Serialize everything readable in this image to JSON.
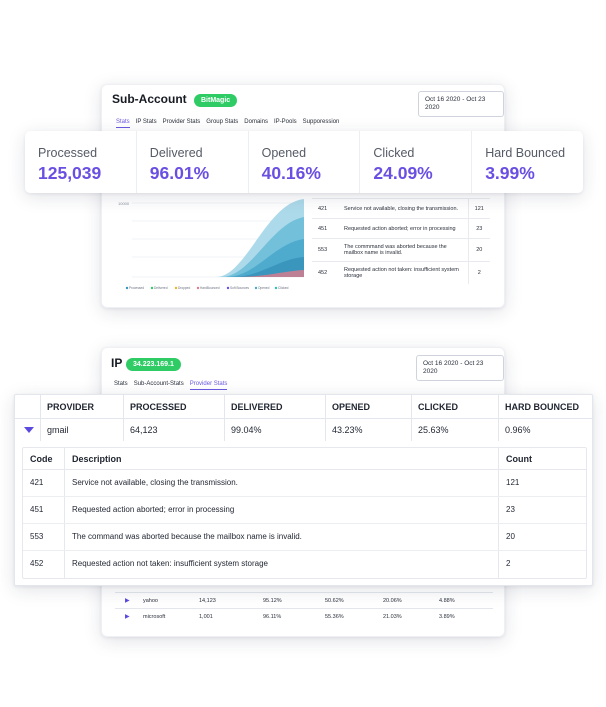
{
  "card1": {
    "title": "Sub-Account",
    "badge": "BitMagic",
    "date_range": "Oct 16 2020 - Oct 23 2020",
    "tabs": [
      {
        "label": "Stats",
        "active": true
      },
      {
        "label": "IP Stats",
        "active": false
      },
      {
        "label": "Provider Stats",
        "active": false
      },
      {
        "label": "Group Stats",
        "active": false
      },
      {
        "label": "Domains",
        "active": false
      },
      {
        "label": "IP-Pools",
        "active": false
      },
      {
        "label": "Supporession",
        "active": false
      }
    ],
    "chart": {
      "ytick_top": "10000",
      "legend": [
        "Processed",
        "Delivered",
        "Dropped",
        "HardBounced",
        "Soft Bounces",
        "Opened",
        "Clicked"
      ]
    },
    "mini_rows": [
      {
        "code": "421",
        "desc": "Service not available, closing the transmission.",
        "count": "121"
      },
      {
        "code": "451",
        "desc": "Requested action aborted; error in processing",
        "count": "23"
      },
      {
        "code": "553",
        "desc": "The commmand was aborted because the mailbox name is invalid.",
        "count": "20"
      },
      {
        "code": "452",
        "desc": "Requested action not taken: insufficient system storage",
        "count": "2"
      }
    ]
  },
  "stats": [
    {
      "label": "Processed",
      "value": "125,039"
    },
    {
      "label": "Delivered",
      "value": "96.01%"
    },
    {
      "label": "Opened",
      "value": "40.16%"
    },
    {
      "label": "Clicked",
      "value": "24.09%"
    },
    {
      "label": "Hard Bounced",
      "value": "3.99%"
    }
  ],
  "card2": {
    "title": "IP",
    "badge": "34.223.169.1",
    "date_range": "Oct 16 2020 - Oct 23 2020",
    "tabs": [
      {
        "label": "Stats",
        "active": false
      },
      {
        "label": "Sub-Account-Stats",
        "active": false
      },
      {
        "label": "Provider Stats",
        "active": true
      }
    ],
    "partial_row": "hotma",
    "rows": [
      {
        "provider": "yahoo",
        "processed": "14,123",
        "delivered": "95.12%",
        "opened": "50.62%",
        "clicked": "20.06%",
        "hard_bounced": "4.88%"
      },
      {
        "provider": "microsoft",
        "processed": "1,001",
        "delivered": "96.11%",
        "opened": "55.36%",
        "clicked": "21.03%",
        "hard_bounced": "3.89%"
      }
    ]
  },
  "provider": {
    "headers": [
      "PROVIDER",
      "PROCESSED",
      "DELIVERED",
      "OPENED",
      "CLICKED",
      "HARD BOUNCED"
    ],
    "row": {
      "provider": "gmail",
      "processed": "64,123",
      "delivered": "99.04%",
      "opened": "43.23%",
      "clicked": "25.63%",
      "hard_bounced": "0.96%"
    },
    "sub_headers": [
      "Code",
      "Description",
      "Count"
    ],
    "sub_rows": [
      {
        "code": "421",
        "desc": "Service not available, closing the transmission.",
        "count": "121"
      },
      {
        "code": "451",
        "desc": "Requested action aborted; error in processing",
        "count": "23"
      },
      {
        "code": "553",
        "desc": "The command was aborted because the mailbox name is invalid.",
        "count": "20"
      },
      {
        "code": "452",
        "desc": "Requested action not taken: insufficient system storage",
        "count": "2"
      }
    ]
  },
  "colors": {
    "accent": "#6a4fe2",
    "badge": "#2fcc66"
  }
}
